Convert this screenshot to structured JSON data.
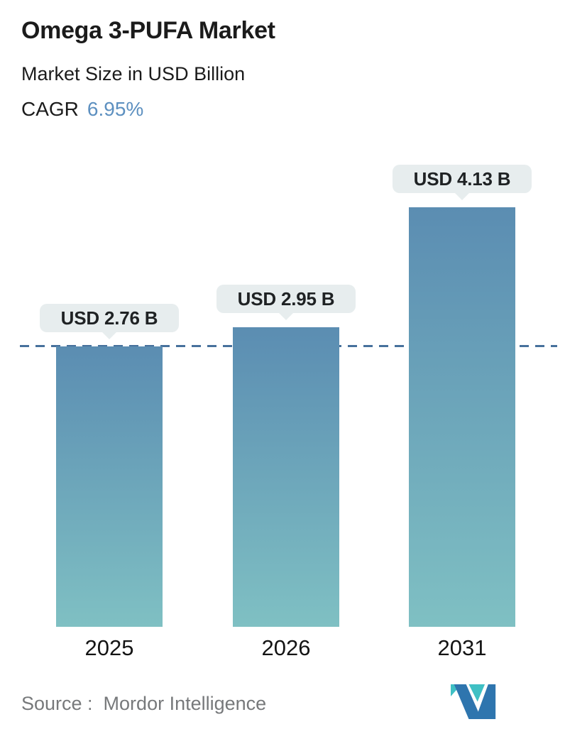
{
  "header": {
    "title": "Omega 3-PUFA Market",
    "subtitle": "Market Size in USD Billion",
    "cagr_label": "CAGR",
    "cagr_value": "6.95%"
  },
  "chart_data": {
    "type": "bar",
    "title": "Omega 3-PUFA Market",
    "subtitle": "Market Size in USD Billion",
    "unit": "USD Billion",
    "categories": [
      "2025",
      "2026",
      "2031"
    ],
    "values": [
      2.76,
      2.95,
      4.13
    ],
    "bar_labels": [
      "USD 2.76 B",
      "USD 2.95 B",
      "USD 4.13 B"
    ],
    "cagr_percent": 6.95,
    "xlabel": "",
    "ylabel": "Market Size in USD Billion",
    "ylim": [
      0,
      4.6
    ],
    "grid": false,
    "legend": "none",
    "baseline": {
      "style": "dashed",
      "at_value": 2.76,
      "note": "horizontal dashed reference line at 2025 bar top"
    }
  },
  "footer": {
    "source_text": "Source :  Mordor Intelligence",
    "logo": "mordor-intelligence-logo"
  },
  "colors": {
    "background": "#ffffff",
    "title_text": "#1b1b1b",
    "cagr_value": "#5d90c0",
    "bar_gradient_top": "#5b8db2",
    "bar_gradient_bottom": "#7fc0c3",
    "label_pill_bg": "#e7edee",
    "label_pill_text": "#1f2224",
    "dashed_line": "#47719c",
    "axis_label_text": "#141414",
    "source_text": "#77797b",
    "logo_blue": "#2e75ae",
    "logo_teal": "#3fc0c4"
  }
}
